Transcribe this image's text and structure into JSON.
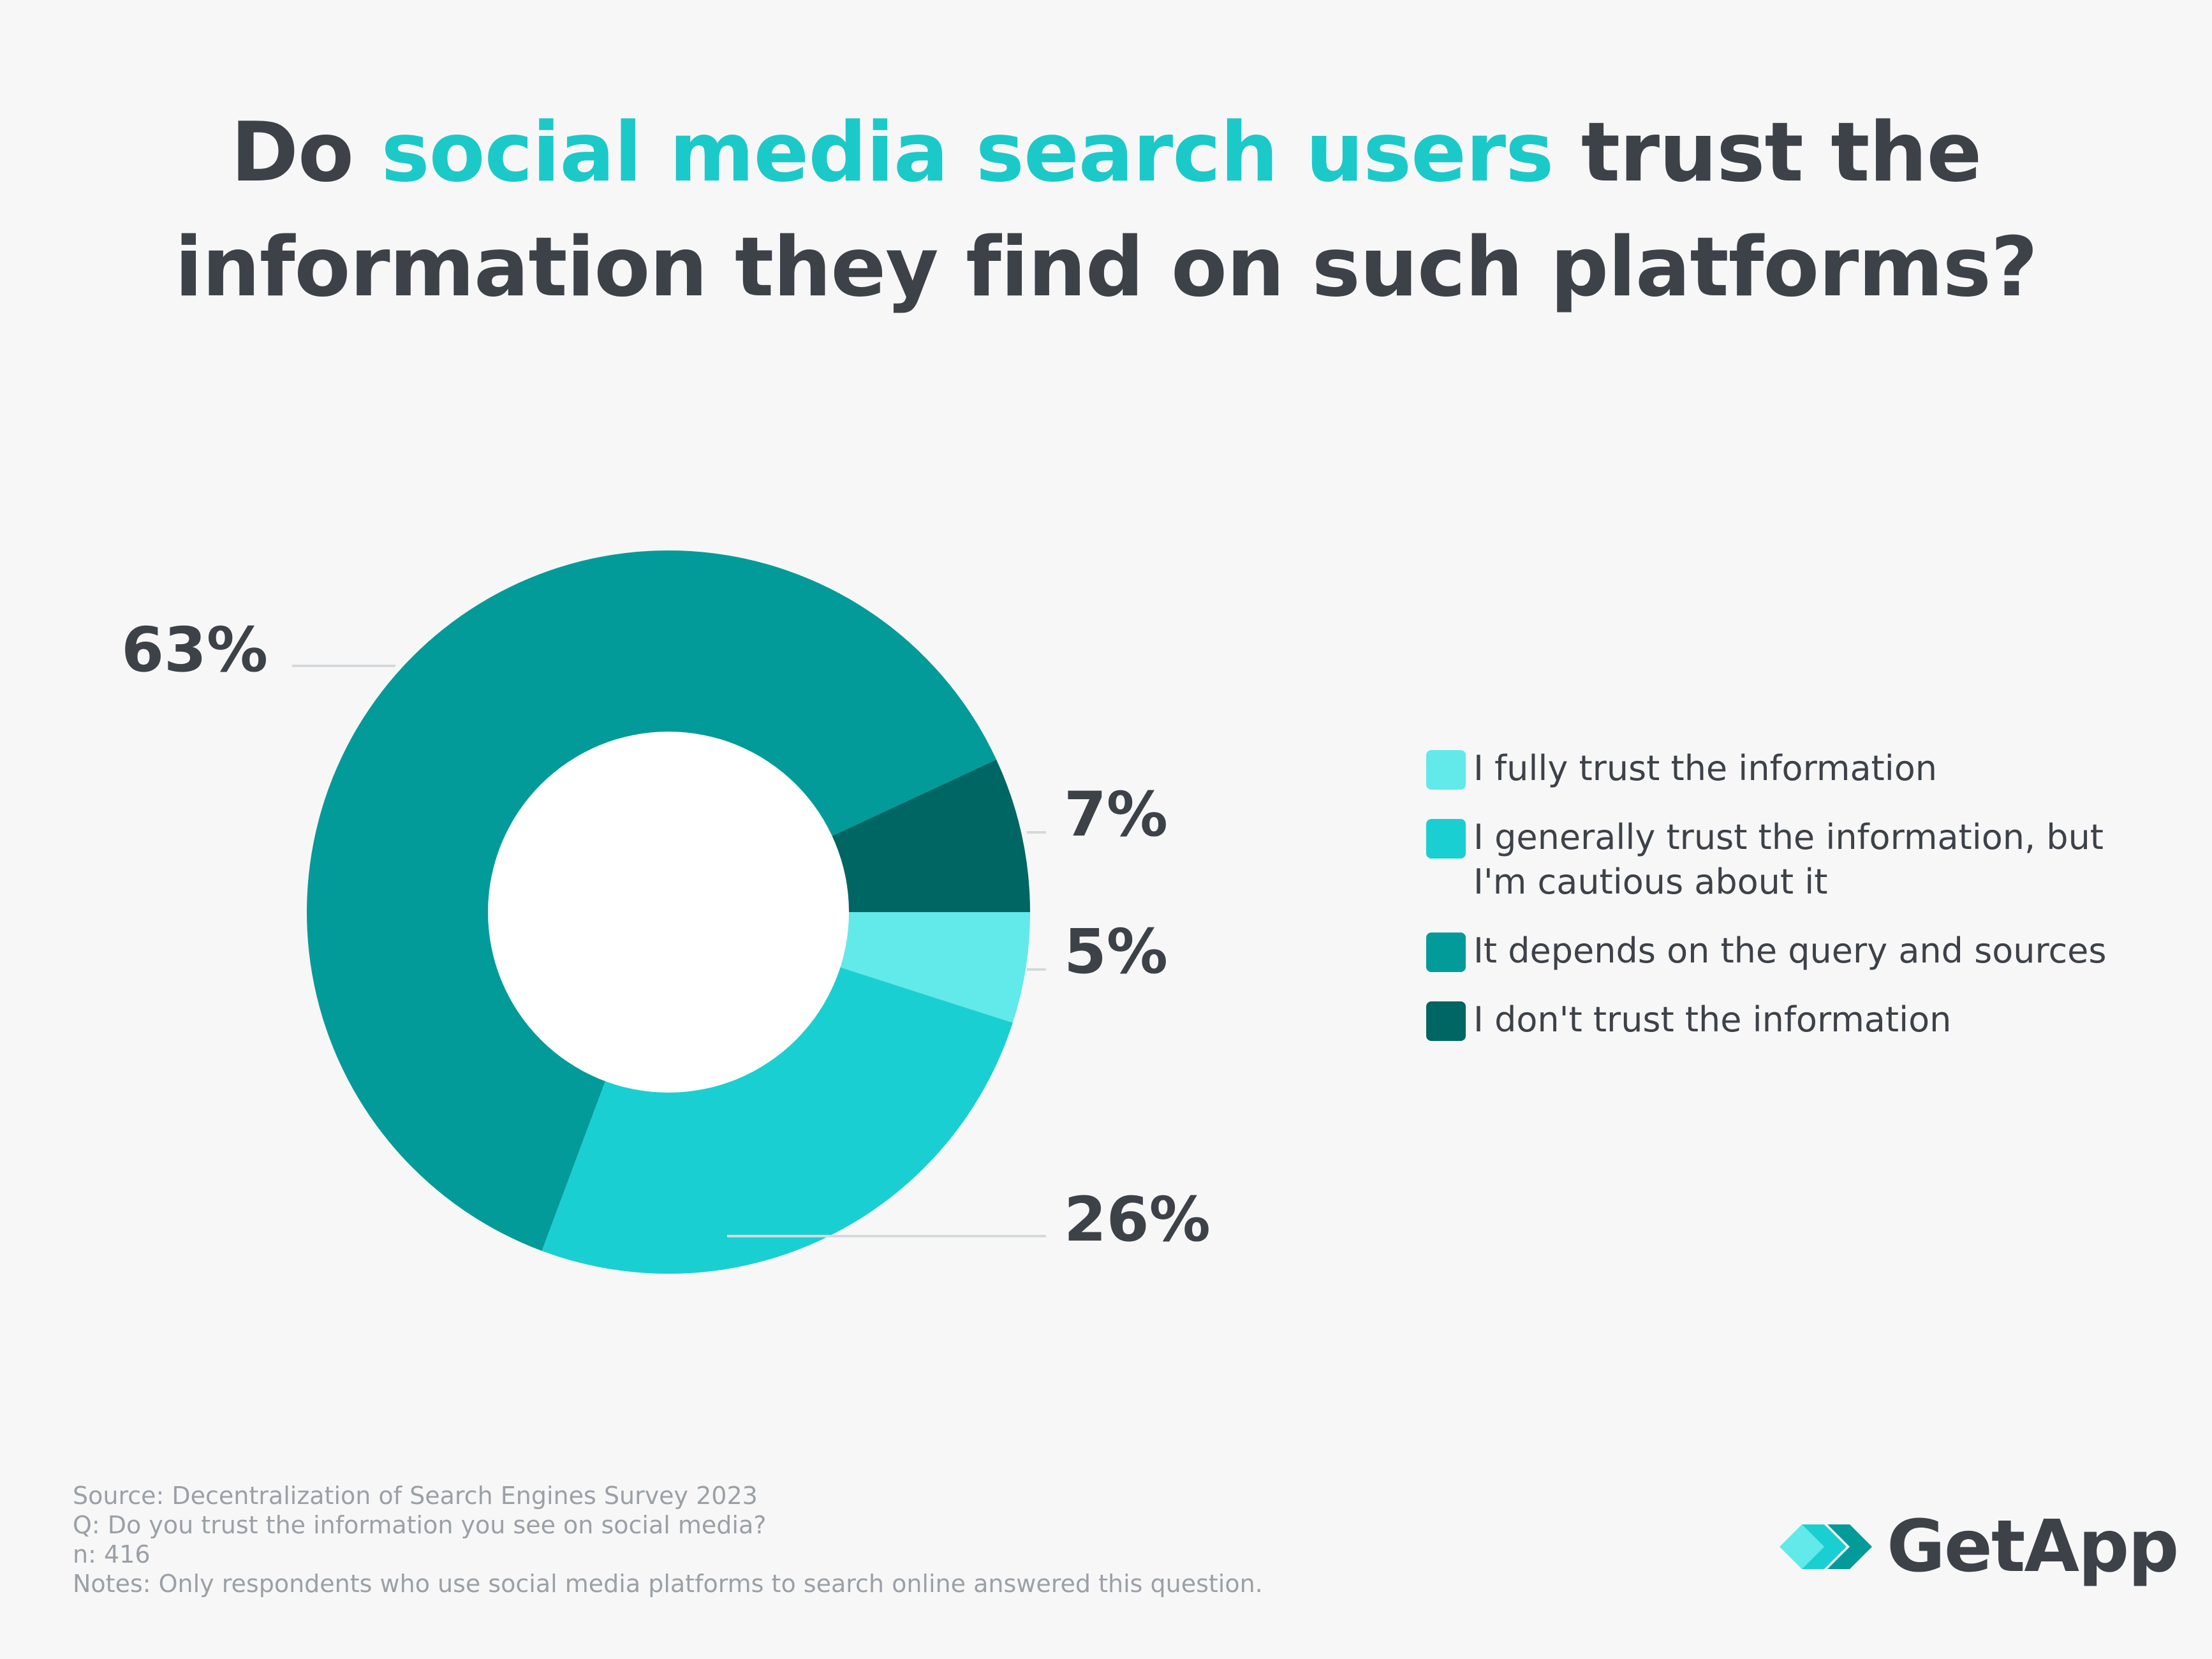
{
  "title": {
    "part1": "Do ",
    "highlight": "social media search users",
    "part2": " trust the",
    "line2": "information they find on such platforms?"
  },
  "chart_data": {
    "type": "pie",
    "donut": true,
    "categories": [
      "I fully trust the information",
      "I generally trust the information, but I'm cautious about it",
      "It depends on the query and sources",
      "I don't trust the information"
    ],
    "values": [
      5,
      26,
      63,
      7
    ],
    "labels": [
      "5%",
      "26%",
      "63%",
      "7%"
    ],
    "colors": [
      "#62e9e9",
      "#1acfd1",
      "#029b9a",
      "#006663"
    ],
    "legend": "right"
  },
  "legend": {
    "items": [
      {
        "label": "I fully trust the information",
        "color": "#62e9e9"
      },
      {
        "label": "I generally trust the information, but I'm cautious about it",
        "color": "#1acfd1"
      },
      {
        "label": "It depends on the query and sources",
        "color": "#029b9a"
      },
      {
        "label": "I don't trust the information",
        "color": "#006663"
      }
    ]
  },
  "footer": {
    "source": "Source: Decentralization of Search Engines Survey 2023",
    "question": "Q: Do you trust the information you see on social media?",
    "n": "n: 416",
    "notes": "Notes: Only respondents who use social media platforms to search online answered this question."
  },
  "logo": {
    "text": "GetApp",
    "icon": "getapp-chevrons-icon"
  }
}
